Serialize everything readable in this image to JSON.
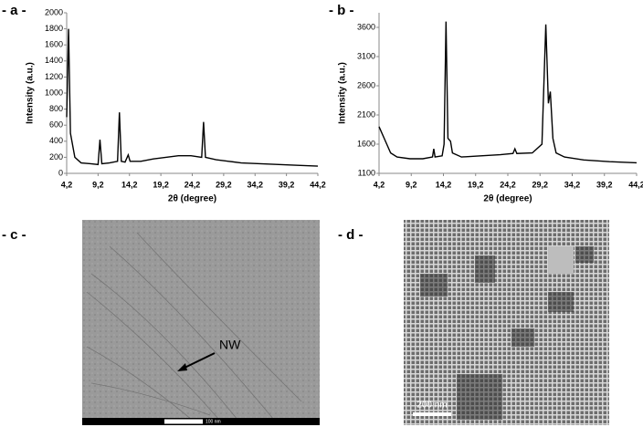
{
  "chart_data": [
    {
      "type": "line",
      "panel_label": "- a -",
      "ylabel": "Intensity (a.u.)",
      "xlabel": "2θ (degree)",
      "color": "#000000",
      "grid": false,
      "xlim": [
        4.2,
        44.2
      ],
      "ylim": [
        0,
        2000
      ],
      "xticks": [
        {
          "value": 4.2,
          "label": "4,2"
        },
        {
          "value": 9.2,
          "label": "9,2"
        },
        {
          "value": 14.2,
          "label": "14,2"
        },
        {
          "value": 19.2,
          "label": "19,2"
        },
        {
          "value": 24.2,
          "label": "24,2"
        },
        {
          "value": 29.2,
          "label": "29,2"
        },
        {
          "value": 34.2,
          "label": "34,2"
        },
        {
          "value": 39.2,
          "label": "39,2"
        },
        {
          "value": 44.2,
          "label": "44,2"
        }
      ],
      "yticks": [
        0,
        200,
        400,
        600,
        800,
        1000,
        1200,
        1400,
        1600,
        1800,
        2000
      ],
      "x": [
        4.2,
        4.5,
        4.8,
        5.5,
        6.5,
        8,
        9.2,
        9.5,
        9.8,
        11,
        12.3,
        12.6,
        12.9,
        13.5,
        14,
        14.3,
        16,
        18,
        20,
        22,
        24,
        25.7,
        26,
        26.3,
        28,
        30,
        32,
        35,
        38,
        41,
        44.2
      ],
      "values": [
        700,
        1800,
        500,
        200,
        130,
        120,
        110,
        420,
        120,
        130,
        150,
        760,
        150,
        140,
        230,
        150,
        150,
        180,
        200,
        220,
        220,
        200,
        640,
        200,
        170,
        150,
        130,
        120,
        110,
        100,
        90
      ]
    },
    {
      "type": "line",
      "panel_label": "- b -",
      "ylabel": "Intensity (a.u.)",
      "xlabel": "2θ (degree)",
      "color": "#000000",
      "grid": false,
      "xlim": [
        4.2,
        44.2
      ],
      "ylim": [
        1100,
        3850
      ],
      "xticks": [
        {
          "value": 4.2,
          "label": "4,2"
        },
        {
          "value": 9.2,
          "label": "9,2"
        },
        {
          "value": 14.2,
          "label": "14,2"
        },
        {
          "value": 19.2,
          "label": "19,2"
        },
        {
          "value": 24.2,
          "label": "24,2"
        },
        {
          "value": 29.2,
          "label": "29,2"
        },
        {
          "value": 34.2,
          "label": "34,2"
        },
        {
          "value": 39.2,
          "label": "39,2"
        },
        {
          "value": 44.2,
          "label": "44,2"
        }
      ],
      "yticks": [
        1100,
        1600,
        2100,
        2600,
        3100,
        3600
      ],
      "x": [
        4.2,
        5,
        6,
        7,
        9,
        11,
        12.5,
        12.7,
        12.9,
        14,
        14.3,
        14.6,
        14.9,
        15.3,
        15.6,
        17,
        20,
        23,
        25,
        25.3,
        25.6,
        28,
        29.5,
        30.1,
        30.5,
        30.8,
        31.2,
        31.7,
        33,
        36,
        40,
        44.2
      ],
      "values": [
        1900,
        1700,
        1450,
        1380,
        1350,
        1350,
        1380,
        1520,
        1380,
        1400,
        1600,
        3700,
        1700,
        1650,
        1450,
        1380,
        1400,
        1420,
        1440,
        1520,
        1440,
        1450,
        1600,
        3650,
        2300,
        2500,
        1700,
        1450,
        1380,
        1330,
        1300,
        1280
      ]
    }
  ],
  "images": [
    {
      "panel_label": "- c -",
      "annotation": "NW",
      "scale_bar": "100 nm"
    },
    {
      "panel_label": "- d -",
      "scale_bar": "200 nm"
    }
  ]
}
